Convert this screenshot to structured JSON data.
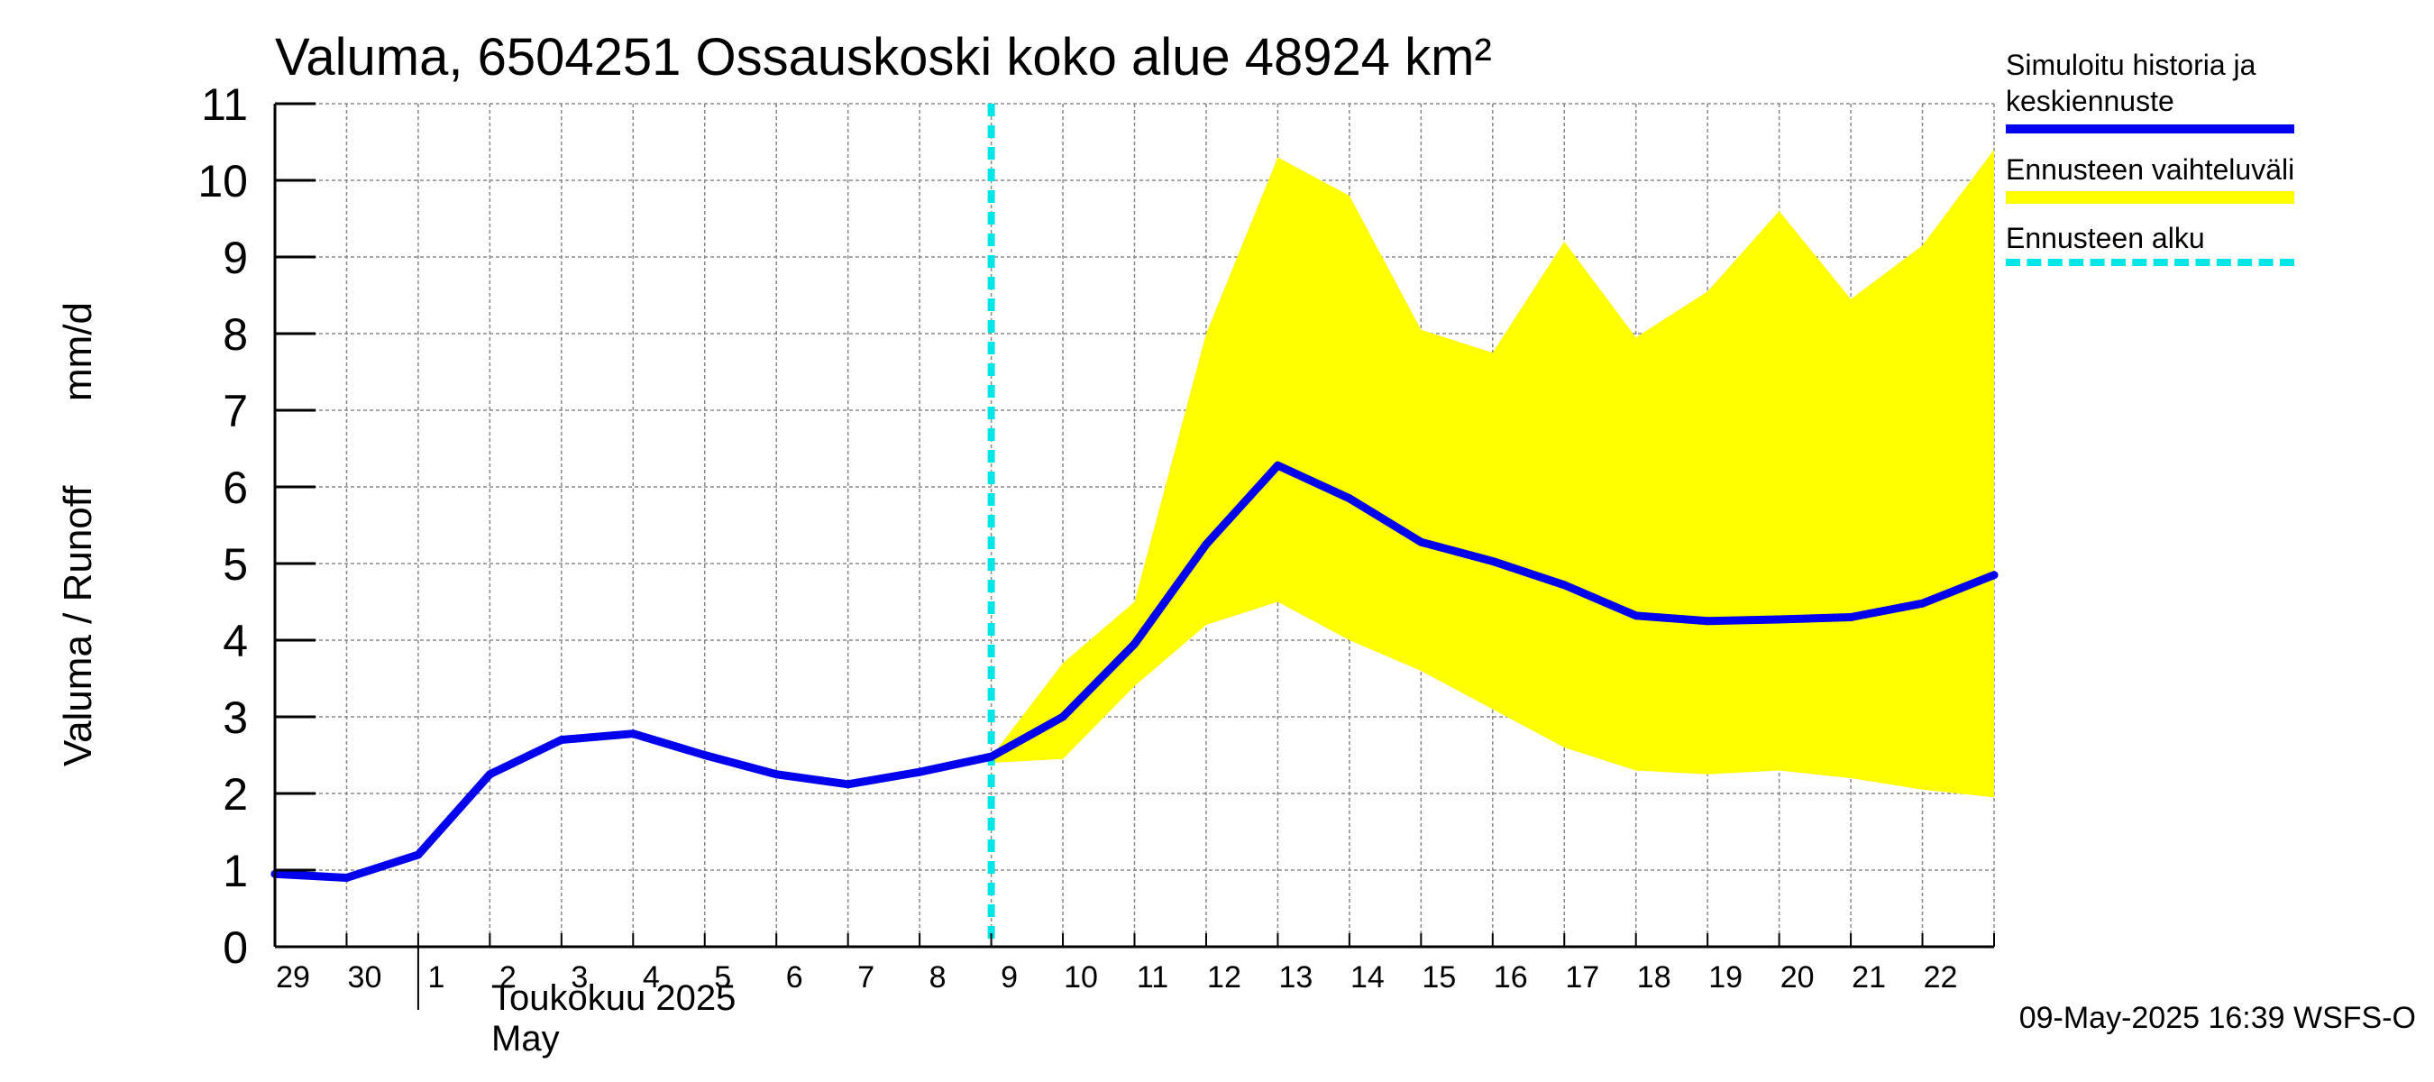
{
  "chart_data": {
    "type": "line",
    "title": "Valuma, 6504251 Ossauskoski koko alue 48924 km²",
    "ylabel_fi": "Valuma / Runoff",
    "ylabel_unit": "mm/d",
    "ylim": [
      0,
      11
    ],
    "yticks": [
      "0",
      "1",
      "2",
      "3",
      "4",
      "5",
      "6",
      "7",
      "8",
      "9",
      "10",
      "11"
    ],
    "x": [
      0,
      1,
      2,
      3,
      4,
      5,
      6,
      7,
      8,
      9,
      10,
      11,
      12,
      13,
      14,
      15,
      16,
      17,
      18,
      19,
      20,
      21,
      22,
      23,
      24
    ],
    "xtick_labels": [
      "29",
      "30",
      "1",
      "2",
      "3",
      "4",
      "5",
      "6",
      "7",
      "8",
      "9",
      "10",
      "11",
      "12",
      "13",
      "14",
      "15",
      "16",
      "17",
      "18",
      "19",
      "20",
      "21",
      "22"
    ],
    "month_label_fi": "Toukokuu  2025",
    "month_label_en": "May",
    "forecast_start_x": 10,
    "series": [
      {
        "name": "Simuloitu historia ja keskiennuste",
        "color": "#0000ee",
        "values": [
          0.95,
          0.9,
          1.2,
          2.25,
          2.7,
          2.78,
          2.5,
          2.25,
          2.12,
          2.28,
          2.48,
          3.0,
          3.95,
          5.25,
          6.28,
          5.85,
          5.28,
          5.03,
          4.72,
          4.32,
          4.25,
          4.27,
          4.3,
          4.48,
          4.85
        ]
      }
    ],
    "band": {
      "name": "Ennusteen vaihteluväli",
      "color": "#ffff00",
      "start_x": 10,
      "upper": [
        2.48,
        3.7,
        4.5,
        8.0,
        10.3,
        9.8,
        8.05,
        7.75,
        9.2,
        7.95,
        8.55,
        9.6,
        8.45,
        9.15,
        10.4
      ],
      "lower": [
        2.4,
        2.45,
        3.4,
        4.2,
        4.5,
        4.0,
        3.6,
        3.1,
        2.6,
        2.3,
        2.25,
        2.3,
        2.2,
        2.05,
        1.95
      ]
    },
    "forecast_marker": {
      "name": "Ennusteen alku",
      "color": "#00e5e5"
    }
  },
  "legend": {
    "history_line1": "Simuloitu historia ja",
    "history_line2": "keskiennuste",
    "range": "Ennusteen vaihteluväli",
    "start": "Ennusteen alku"
  },
  "footer": "09-May-2025 16:39 WSFS-O"
}
